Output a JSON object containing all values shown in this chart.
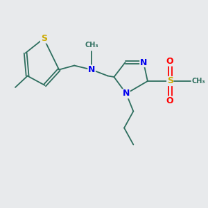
{
  "bg_color": "#e8eaec",
  "bond_color": "#2d6e5e",
  "N_color": "#0000ee",
  "S_color": "#ccaa00",
  "O_color": "#ff0000",
  "bond_lw": 1.3,
  "font_size": 8,
  "xlim": [
    0,
    10
  ],
  "ylim": [
    0,
    10
  ]
}
